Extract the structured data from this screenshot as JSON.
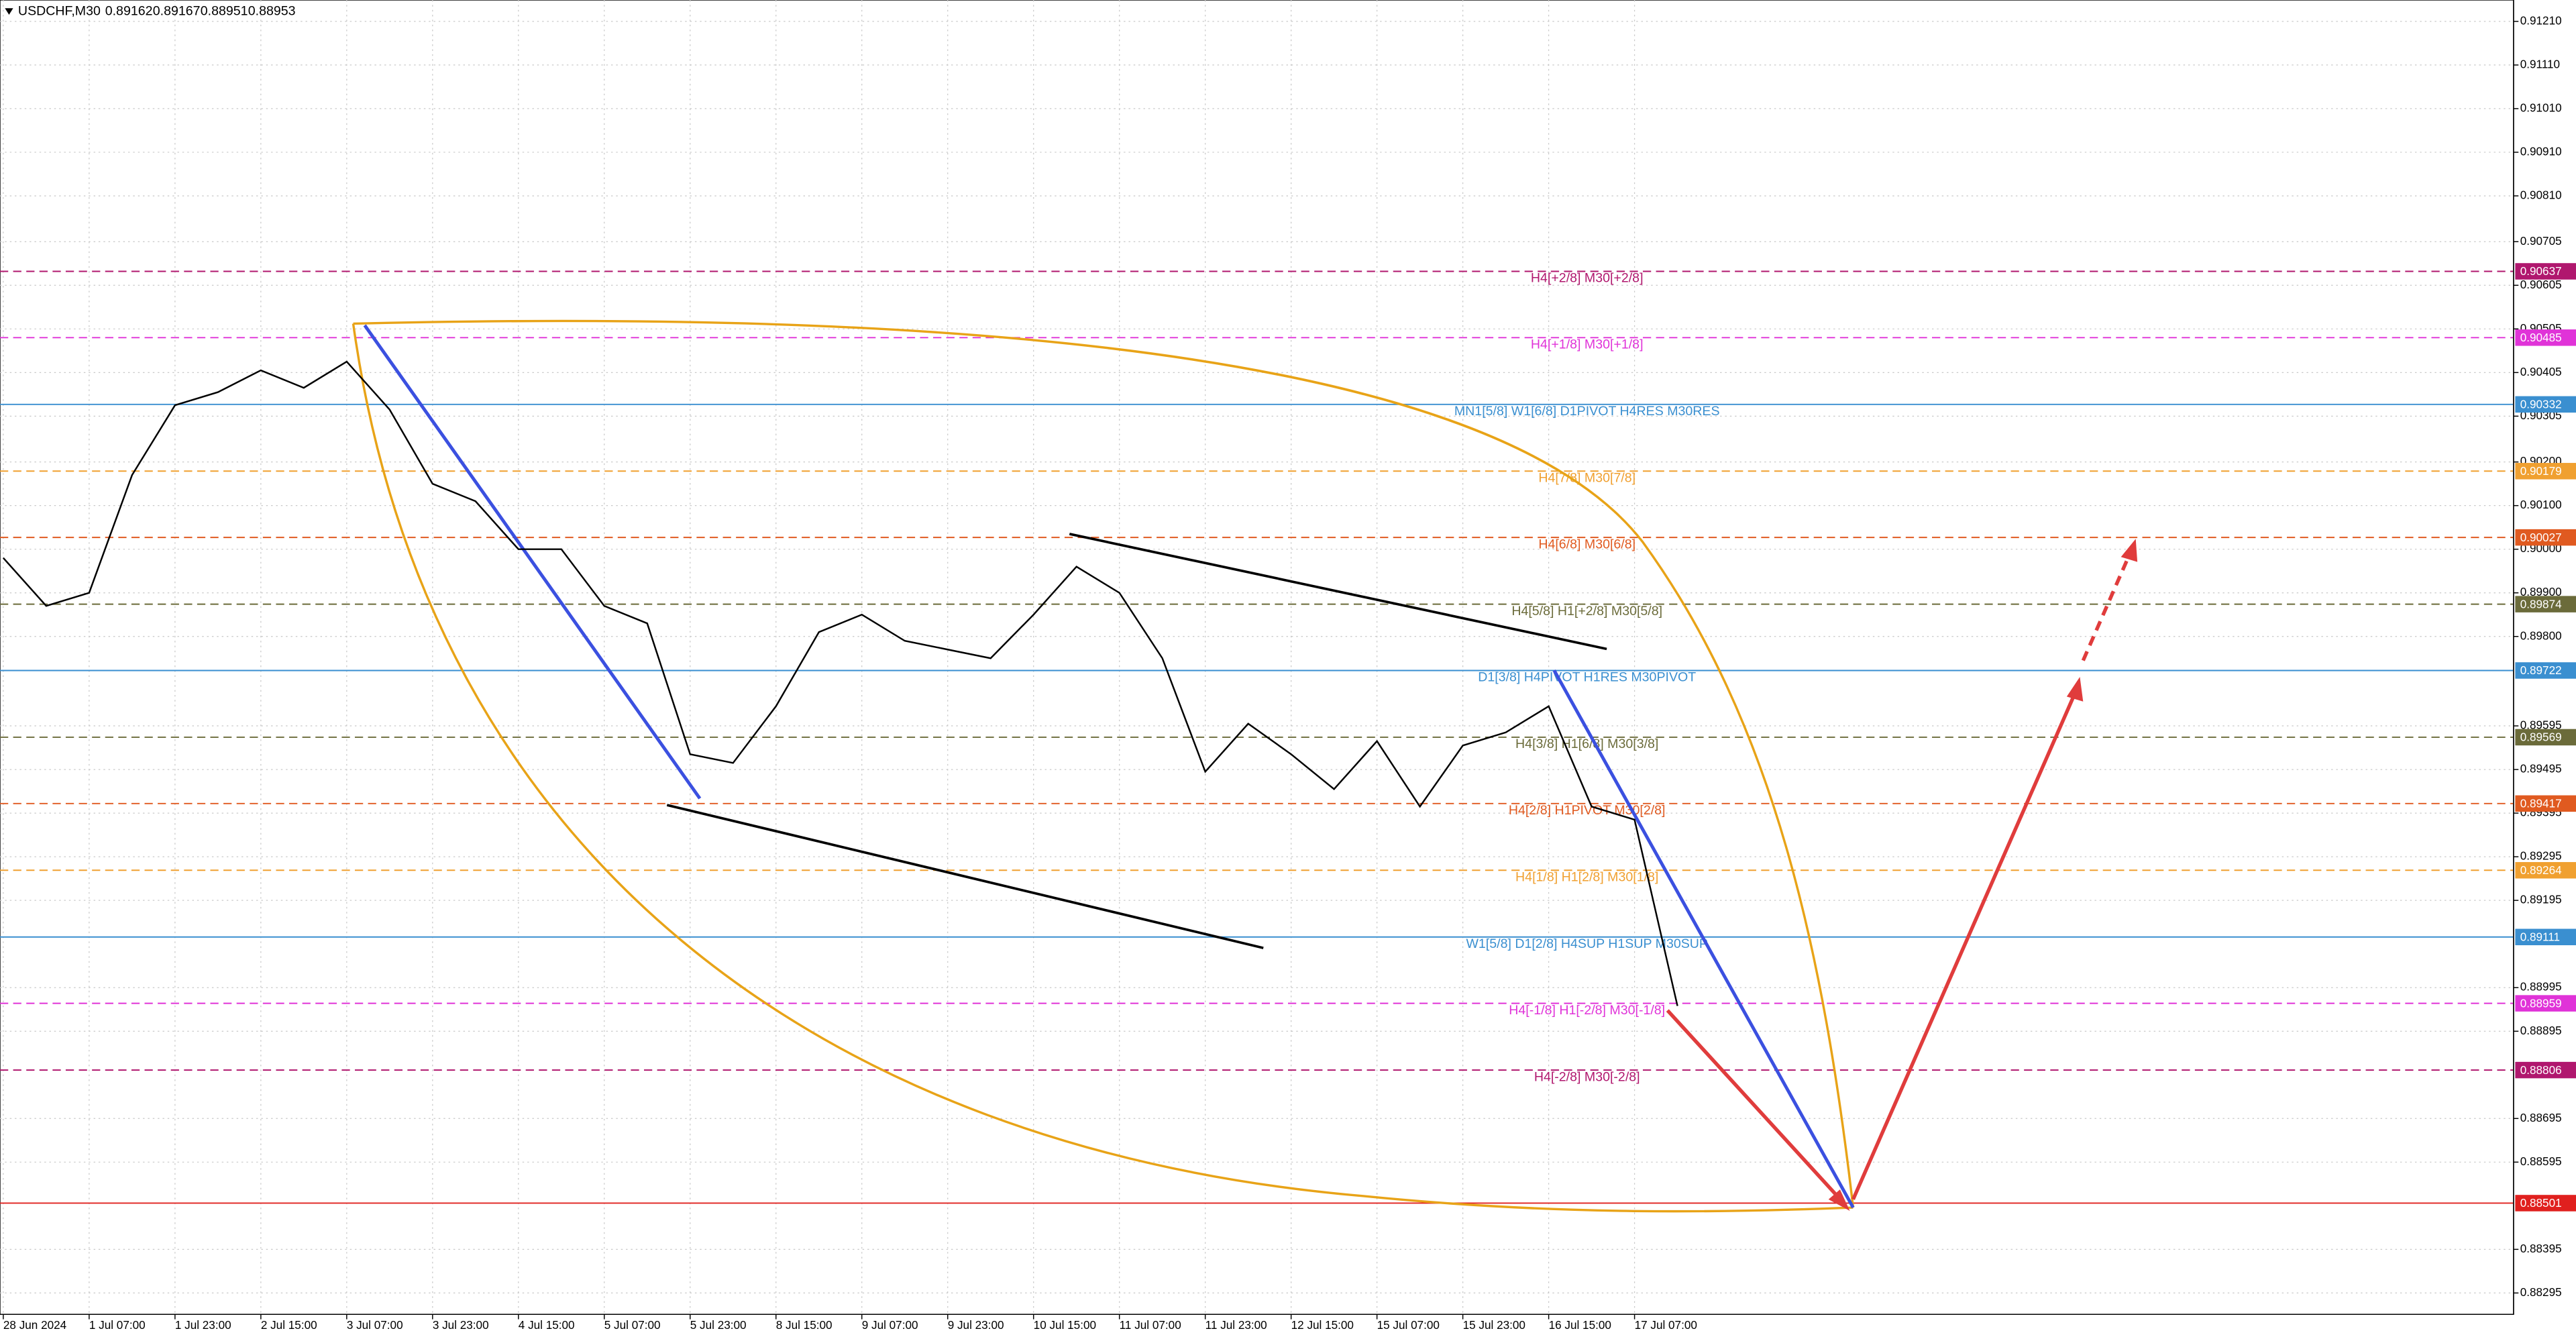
{
  "chart_data": {
    "type": "line",
    "symbol": "USDCHF,M30",
    "ohlc": [
      0.89162,
      0.89167,
      0.88951,
      0.88953
    ],
    "categories": [
      "28 Jun 2024",
      null,
      "1 Jul 07:00",
      null,
      "1 Jul 23:00",
      null,
      "2 Jul 15:00",
      null,
      "3 Jul 07:00",
      null,
      "3 Jul 23:00",
      null,
      "4 Jul 15:00",
      null,
      "5 Jul 07:00",
      null,
      "5 Jul 23:00",
      null,
      "8 Jul 15:00",
      null,
      "9 Jul 07:00",
      null,
      "9 Jul 23:00",
      null,
      "10 Jul 15:00",
      null,
      "11 Jul 07:00",
      null,
      "11 Jul 23:00",
      null,
      "12 Jul 15:00",
      null,
      "15 Jul 07:00",
      null,
      "15 Jul 23:00",
      null,
      "16 Jul 15:00",
      null,
      "17 Jul 07:00",
      null
    ],
    "series": [
      {
        "name": "USDCHF",
        "color": "#000000",
        "values": [
          0.8998,
          0.8987,
          0.899,
          0.9017,
          0.9033,
          0.9036,
          0.9041,
          0.9037,
          0.9043,
          0.9032,
          0.9015,
          0.9011,
          0.9,
          0.9,
          0.8987,
          0.8983,
          0.8953,
          0.8951,
          0.8964,
          0.8981,
          0.8985,
          0.8979,
          0.8977,
          0.8975,
          0.8985,
          0.8996,
          0.899,
          0.8975,
          0.8949,
          0.896,
          0.8953,
          0.8945,
          0.8956,
          0.8941,
          0.8955,
          0.8958,
          0.8964,
          0.8941,
          0.8938,
          0.88953
        ]
      }
    ],
    "ylim": [
      0.88246,
      0.91259
    ],
    "yticks": [
      {
        "value": 0.9121,
        "label": "0.91210"
      },
      {
        "value": 0.9111,
        "label": "0.91110"
      },
      {
        "value": 0.9101,
        "label": "0.91010"
      },
      {
        "value": 0.9091,
        "label": "0.90910"
      },
      {
        "value": 0.9081,
        "label": "0.90810"
      },
      0.90705,
      0.90605,
      0.90505,
      0.90405,
      0.90305,
      {
        "value": 0.902,
        "label": "0.90200"
      },
      {
        "value": 0.901,
        "label": "0.90100"
      },
      {
        "value": 0.9,
        "label": "0.90000"
      },
      {
        "value": 0.899,
        "label": "0.89900"
      },
      {
        "value": 0.898,
        "label": "0.89800"
      },
      0.89595,
      0.89495,
      0.89395,
      0.89295,
      0.89195,
      0.88995,
      0.88895,
      0.88695,
      0.88595,
      0.88395,
      0.88295
    ],
    "grid": true,
    "levels": [
      {
        "label": "H4[+2/8] M30[+2/8]",
        "value": 0.90637,
        "color": "#b0176e",
        "dashed": true
      },
      {
        "label": "H4[+1/8] M30[+1/8]",
        "value": 0.90485,
        "color": "#e033d8",
        "dashed": true
      },
      {
        "label": "MN1[5/8] W1[6/8] D1PIVOT H4RES M30RES",
        "value": 0.90332,
        "color": "#3a8fd0",
        "dashed": false
      },
      {
        "label": "H4[7/8] M30[7/8]",
        "value": 0.90179,
        "color": "#f0a030",
        "dashed": true
      },
      {
        "label": "H4[6/8] M30[6/8]",
        "value": 0.90027,
        "color": "#e05a20",
        "dashed": true
      },
      {
        "label": "H4[5/8] H1[+2/8] M30[5/8]",
        "value": 0.89874,
        "color": "#6b6b3a",
        "dashed": true
      },
      {
        "label": "D1[3/8] H4PIVOT H1RES M30PIVOT",
        "value": 0.89722,
        "color": "#3a8fd0",
        "dashed": false
      },
      {
        "label": "H4[3/8] H1[6/8] M30[3/8]",
        "value": 0.89569,
        "color": "#6b6b3a",
        "dashed": true
      },
      {
        "label": "H4[2/8] H1PIVOT M30[2/8]",
        "value": 0.89417,
        "color": "#e05a20",
        "dashed": true
      },
      {
        "label": "H4[1/8] H1[2/8] M30[1/8]",
        "value": 0.89264,
        "color": "#f0a030",
        "dashed": true
      },
      {
        "label": "W1[5/8] D1[2/8] H4SUP H1SUP M30SUP",
        "value": 0.89111,
        "color": "#3a8fd0",
        "dashed": false
      },
      {
        "label": "H4[-1/8] H1[-2/8] M30[-1/8]",
        "value": 0.88959,
        "color": "#e033d8",
        "dashed": true
      },
      {
        "label": "H4[-2/8] M30[-2/8]",
        "value": 0.88806,
        "color": "#b0176e",
        "dashed": true
      },
      {
        "value": 0.88501,
        "color": "#e0201e",
        "dashed": false
      }
    ]
  }
}
